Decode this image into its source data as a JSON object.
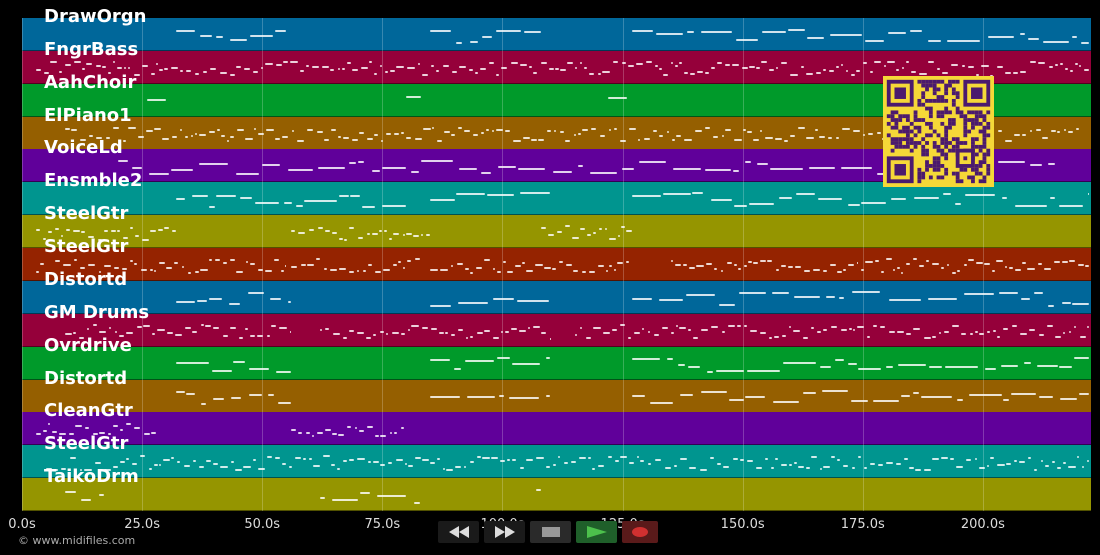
{
  "tracks": [
    {
      "name": "DrawOrgn",
      "color": "#00679a"
    },
    {
      "name": "FngrBass",
      "color": "#95003a"
    },
    {
      "name": "AahChoir",
      "color": "#009a2a"
    },
    {
      "name": "ElPiano1",
      "color": "#955f00"
    },
    {
      "name": "VoiceLd",
      "color": "#60009a"
    },
    {
      "name": "Ensmble2",
      "color": "#00958f"
    },
    {
      "name": "SteelGtr",
      "color": "#959500"
    },
    {
      "name": "SteelGtr",
      "color": "#952300"
    },
    {
      "name": "Distortd",
      "color": "#00679a"
    },
    {
      "name": "GM Drums",
      "color": "#95003a"
    },
    {
      "name": "Ovrdrive",
      "color": "#009a2a"
    },
    {
      "name": "Distortd",
      "color": "#955f00"
    },
    {
      "name": "CleanGtr",
      "color": "#60009a"
    },
    {
      "name": "SteelGtr",
      "color": "#00958f"
    },
    {
      "name": "TaikoDrm",
      "color": "#959500"
    }
  ],
  "timeline": {
    "max_seconds": 222.5,
    "ticks": [
      "0.0s",
      "25.0s",
      "50.0s",
      "75.0s",
      "100.0s",
      "125.0s",
      "150.0s",
      "175.0s",
      "200.0s"
    ],
    "tick_values": [
      0,
      25,
      50,
      75,
      100,
      125,
      150,
      175,
      200
    ]
  },
  "footer": {
    "text": "© www.midifiles.com"
  },
  "transport": {
    "rewind": "rewind-icon",
    "fast_forward": "fast-forward-icon",
    "stop": "stop-icon",
    "play": "play-icon",
    "record": "record-icon"
  },
  "qr": {
    "icon": "qr-code-icon"
  }
}
